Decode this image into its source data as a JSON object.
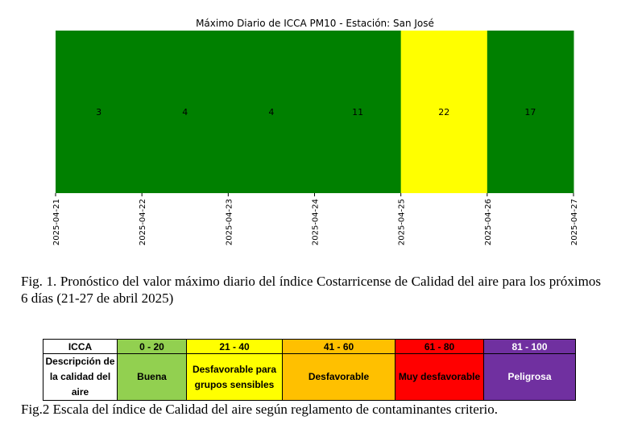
{
  "chart_data": {
    "type": "heatmap",
    "title": "Máximo Diario de ICCA PM10 - Estación: San José",
    "x": [
      "2025-04-21",
      "2025-04-22",
      "2025-04-23",
      "2025-04-24",
      "2025-04-25",
      "2025-04-26",
      "2025-04-27"
    ],
    "cells": [
      {
        "start": "2025-04-21",
        "end": "2025-04-22",
        "value": 3,
        "color": "#008000"
      },
      {
        "start": "2025-04-22",
        "end": "2025-04-23",
        "value": 4,
        "color": "#008000"
      },
      {
        "start": "2025-04-23",
        "end": "2025-04-24",
        "value": 4,
        "color": "#008000"
      },
      {
        "start": "2025-04-24",
        "end": "2025-04-25",
        "value": 11,
        "color": "#008000"
      },
      {
        "start": "2025-04-25",
        "end": "2025-04-26",
        "value": 22,
        "color": "#ffff00"
      },
      {
        "start": "2025-04-26",
        "end": "2025-04-27",
        "value": 17,
        "color": "#008000"
      }
    ],
    "xlabel": "",
    "ylabel": "",
    "grid": false
  },
  "captions": {
    "fig1": "Fig. 1. Pronóstico del valor máximo diario del índice Costarricense de Calidad del aire para los próximos 6 días (21-27 de abril 2025)",
    "fig2": "Fig.2 Escala del índice de Calidad del aire según reglamento de contaminantes criterio."
  },
  "scale_table": {
    "header_label": "ICCA",
    "desc_label": "Descripción de la calidad del aire",
    "ranges": [
      {
        "range": "0 - 20",
        "description": "Buena",
        "color": "#92d050",
        "text_color": "#000000"
      },
      {
        "range": "21 - 40",
        "description": "Desfavorable para grupos sensibles",
        "color": "#ffff00",
        "text_color": "#000000"
      },
      {
        "range": "41 - 60",
        "description": "Desfavorable",
        "color": "#ffc000",
        "text_color": "#000000"
      },
      {
        "range": "61 - 80",
        "description": "Muy desfavorable",
        "color": "#ff0000",
        "text_color": "#000000"
      },
      {
        "range": "81 - 100",
        "description": "Peligrosa",
        "color": "#7030a0",
        "text_color": "#ffffff"
      }
    ]
  }
}
